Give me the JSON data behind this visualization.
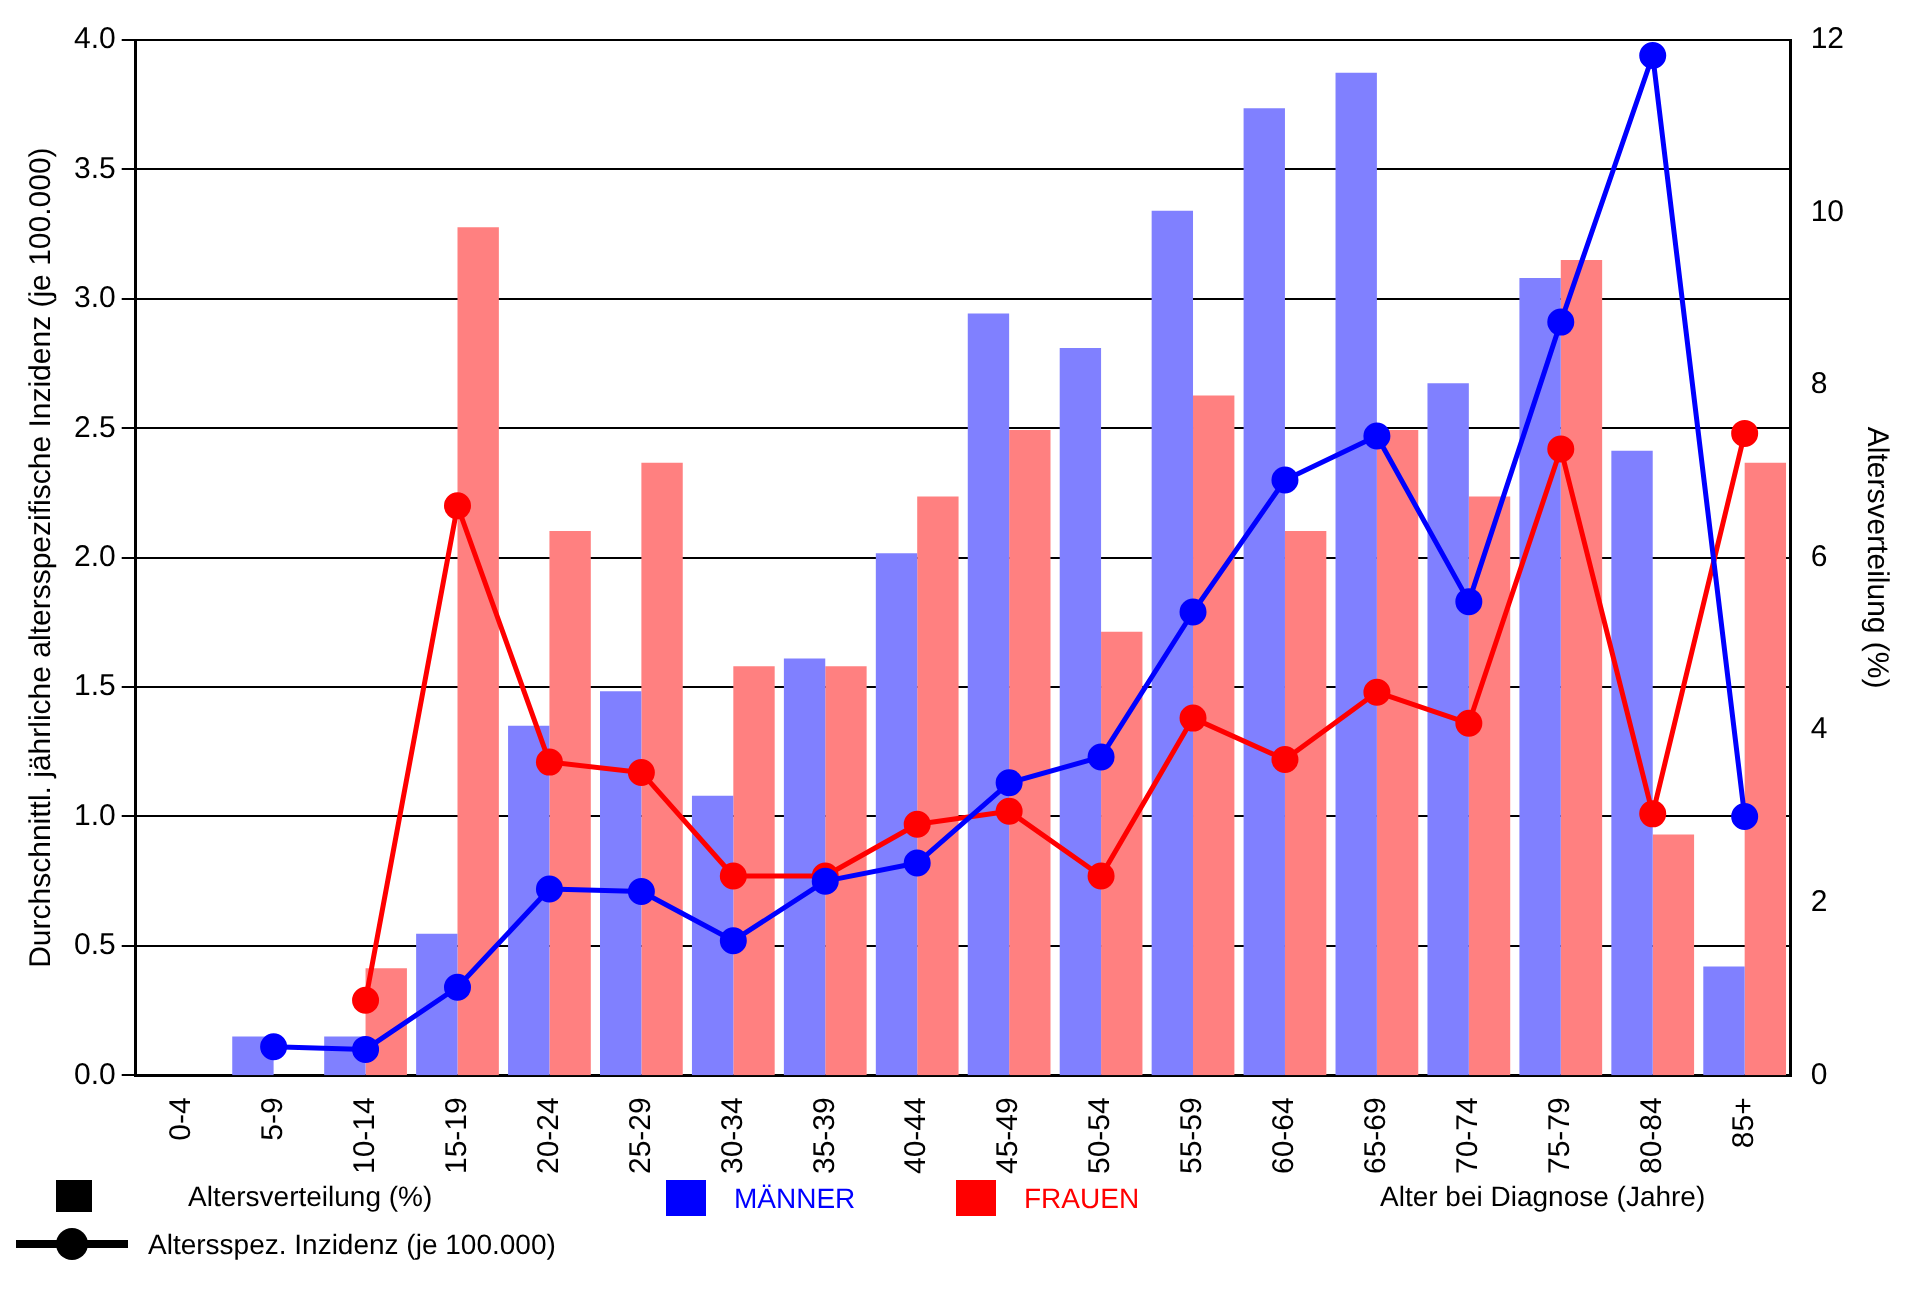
{
  "chart_data": {
    "type": "bar",
    "xlabel": "Alter bei Diagnose (Jahre)",
    "ylabel": "Durchschnittl. jährliche altersspezifische Inzidenz (je 100.000)",
    "y2label": "Altersverteilung (%)",
    "categories": [
      "0-4",
      "5-9",
      "10-14",
      "15-19",
      "20-24",
      "25-29",
      "30-34",
      "35-39",
      "40-44",
      "45-49",
      "50-54",
      "55-59",
      "60-64",
      "65-69",
      "70-74",
      "75-79",
      "80-84",
      "85+"
    ],
    "series": [
      {
        "axis": "y2",
        "color": "#8080ff",
        "values": [
          null,
          0.45,
          0.45,
          1.64,
          4.05,
          4.45,
          3.24,
          4.83,
          6.05,
          8.83,
          8.43,
          10.02,
          11.21,
          11.62,
          8.02,
          9.24,
          7.24,
          1.26
        ]
      },
      {
        "axis": "y2",
        "color": "#ff8080",
        "values": [
          null,
          null,
          1.24,
          9.83,
          6.31,
          7.1,
          4.74,
          4.74,
          6.71,
          7.48,
          5.14,
          7.88,
          6.31,
          7.48,
          6.71,
          9.45,
          2.79,
          7.1
        ]
      },
      {
        "name": "MÄNNER",
        "type": "line",
        "axis": "y",
        "color": "#0000ff",
        "values": [
          null,
          0.11,
          0.1,
          0.34,
          0.72,
          0.71,
          0.52,
          0.75,
          0.82,
          1.13,
          1.23,
          1.79,
          2.3,
          2.47,
          1.83,
          2.91,
          3.94,
          1.0
        ]
      },
      {
        "name": "FRAUEN",
        "type": "line",
        "axis": "y",
        "color": "#ff0000",
        "values": [
          null,
          null,
          0.29,
          2.2,
          1.21,
          1.17,
          0.77,
          0.77,
          0.97,
          1.02,
          0.77,
          1.38,
          1.22,
          1.48,
          1.36,
          2.42,
          1.01,
          2.48
        ]
      }
    ],
    "ylim": [
      0,
      4
    ],
    "yticks": [
      {
        "value": 0,
        "label": "0.0"
      },
      0.5,
      {
        "value": 1,
        "label": "1.0"
      },
      1.5,
      {
        "value": 2,
        "label": "2.0"
      },
      2.5,
      {
        "value": 3,
        "label": "3.0"
      },
      3.5,
      {
        "value": 4,
        "label": "4.0"
      }
    ],
    "y2lim": [
      0,
      12
    ],
    "y2ticks": [
      0,
      2,
      4,
      6,
      8,
      10,
      12
    ],
    "grid": "y",
    "legend": "bottom",
    "marker": "circle",
    "line_style": "solid",
    "annotations": [
      "Altersverteilung (%)",
      "Altersspez. Inzidenz (je 100.000)"
    ]
  }
}
